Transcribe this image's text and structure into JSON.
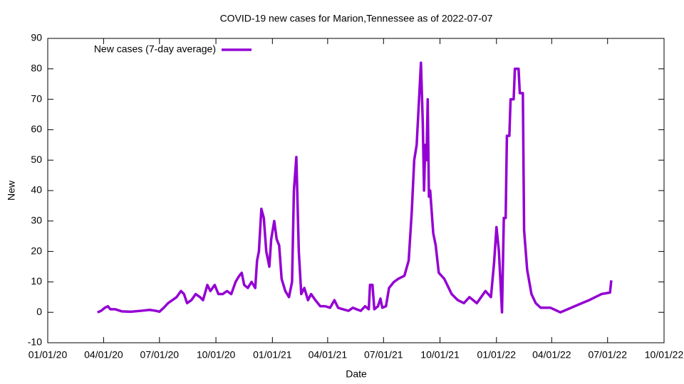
{
  "chart_data": {
    "type": "line",
    "title": "COVID-19 new cases for Marion,Tennessee as of 2022-07-07",
    "x_label": "Date",
    "y_label": "New",
    "xlim": [
      "2020-01-01",
      "2022-10-01"
    ],
    "xticks": [
      {
        "value": "2020-01-01",
        "label": "01/01/20"
      },
      {
        "value": "2020-04-01",
        "label": "04/01/20"
      },
      {
        "value": "2020-07-01",
        "label": "07/01/20"
      },
      {
        "value": "2020-10-01",
        "label": "10/01/20"
      },
      {
        "value": "2021-01-01",
        "label": "01/01/21"
      },
      {
        "value": "2021-04-01",
        "label": "04/01/21"
      },
      {
        "value": "2021-07-01",
        "label": "07/01/21"
      },
      {
        "value": "2021-10-01",
        "label": "10/01/21"
      },
      {
        "value": "2022-01-01",
        "label": "01/01/22"
      },
      {
        "value": "2022-04-01",
        "label": "04/01/22"
      },
      {
        "value": "2022-07-01",
        "label": "07/01/22"
      },
      {
        "value": "2022-10-01",
        "label": "10/01/22"
      }
    ],
    "ylim": [
      -10,
      90
    ],
    "yticks": [
      -10,
      0,
      10,
      20,
      30,
      40,
      50,
      60,
      70,
      80,
      90
    ],
    "legend": "top-left",
    "x": [
      "2020-03-22",
      "2020-03-28",
      "2020-04-03",
      "2020-04-08",
      "2020-04-12",
      "2020-04-20",
      "2020-05-01",
      "2020-05-15",
      "2020-06-01",
      "2020-06-15",
      "2020-06-25",
      "2020-07-01",
      "2020-07-08",
      "2020-07-15",
      "2020-07-22",
      "2020-07-29",
      "2020-08-05",
      "2020-08-10",
      "2020-08-15",
      "2020-08-22",
      "2020-08-29",
      "2020-09-05",
      "2020-09-10",
      "2020-09-17",
      "2020-09-22",
      "2020-09-29",
      "2020-10-05",
      "2020-10-12",
      "2020-10-19",
      "2020-10-26",
      "2020-11-02",
      "2020-11-08",
      "2020-11-12",
      "2020-11-16",
      "2020-11-22",
      "2020-11-28",
      "2020-12-04",
      "2020-12-07",
      "2020-12-10",
      "2020-12-14",
      "2020-12-18",
      "2020-12-22",
      "2020-12-27",
      "2020-12-30",
      "2021-01-04",
      "2021-01-08",
      "2021-01-12",
      "2021-01-16",
      "2021-01-22",
      "2021-01-28",
      "2021-02-02",
      "2021-02-05",
      "2021-02-09",
      "2021-02-13",
      "2021-02-17",
      "2021-02-22",
      "2021-02-28",
      "2021-03-05",
      "2021-03-12",
      "2021-03-20",
      "2021-03-28",
      "2021-04-05",
      "2021-04-12",
      "2021-04-18",
      "2021-04-26",
      "2021-05-05",
      "2021-05-12",
      "2021-05-18",
      "2021-05-25",
      "2021-06-01",
      "2021-06-07",
      "2021-06-09",
      "2021-06-13",
      "2021-06-16",
      "2021-06-22",
      "2021-06-26",
      "2021-06-29",
      "2021-07-05",
      "2021-07-10",
      "2021-07-18",
      "2021-07-25",
      "2021-08-04",
      "2021-08-11",
      "2021-08-16",
      "2021-08-20",
      "2021-08-24",
      "2021-08-31",
      "2021-09-03",
      "2021-09-05",
      "2021-09-07",
      "2021-09-09",
      "2021-09-11",
      "2021-09-13",
      "2021-09-15",
      "2021-09-20",
      "2021-09-24",
      "2021-09-29",
      "2021-10-08",
      "2021-10-20",
      "2021-10-30",
      "2021-11-09",
      "2021-11-18",
      "2021-11-30",
      "2021-12-14",
      "2021-12-23",
      "2021-12-28",
      "2022-01-01",
      "2022-01-05",
      "2022-01-10",
      "2022-01-13",
      "2022-01-16",
      "2022-01-18",
      "2022-01-22",
      "2022-01-24",
      "2022-01-29",
      "2022-01-31",
      "2022-02-06",
      "2022-02-08",
      "2022-02-13",
      "2022-02-15",
      "2022-02-20",
      "2022-02-27",
      "2022-03-06",
      "2022-03-14",
      "2022-03-30",
      "2022-04-15",
      "2022-04-27",
      "2022-05-20",
      "2022-06-01",
      "2022-06-21",
      "2022-07-05",
      "2022-07-07"
    ],
    "series": [
      {
        "name": "New cases (7-day average)",
        "color": "#9400d3",
        "values": [
          0,
          0.5,
          1.5,
          2,
          1,
          1,
          0.3,
          0.2,
          0.5,
          0.8,
          0.5,
          0.2,
          1.5,
          3,
          4,
          5,
          7,
          6,
          3,
          4,
          6,
          5,
          4,
          9,
          7,
          9,
          6,
          6,
          7,
          6,
          10,
          12,
          13,
          9,
          8,
          10,
          8,
          17,
          20,
          34,
          31,
          20,
          15,
          24,
          30,
          24,
          22,
          11,
          7,
          5,
          10,
          40,
          51,
          20,
          6,
          8,
          4,
          6,
          4,
          2,
          2,
          1.5,
          4,
          1.5,
          1,
          0.5,
          1.5,
          1,
          0.5,
          2,
          1,
          9,
          9,
          1,
          2,
          4.5,
          1.5,
          2,
          8,
          10,
          11,
          12,
          17,
          33,
          50,
          55,
          82,
          62,
          40,
          55,
          50,
          70,
          38,
          40,
          26,
          22,
          13,
          11,
          6,
          4,
          3,
          5,
          3,
          7,
          5,
          16,
          28,
          20,
          0,
          31,
          31,
          58,
          58,
          70,
          70,
          80,
          80,
          72,
          72,
          27,
          14,
          6,
          3,
          1.5,
          1.5,
          0,
          1,
          3,
          4,
          6,
          6.5,
          10.5
        ]
      }
    ]
  }
}
